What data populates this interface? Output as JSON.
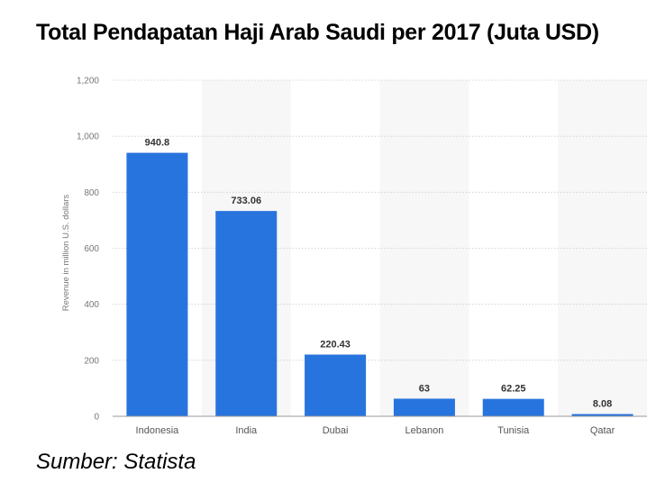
{
  "title": "Total Pendapatan Haji Arab Saudi per 2017 (Juta USD)",
  "source": "Sumber: Statista",
  "colors": {
    "bar": "#2874de",
    "band": "#f7f7f7",
    "grid": "#cccccc"
  },
  "chart_data": {
    "type": "bar",
    "categories": [
      "Indonesia",
      "India",
      "Dubai",
      "Lebanon",
      "Tunisia",
      "Qatar"
    ],
    "values": [
      940.8,
      733.06,
      220.43,
      63,
      62.25,
      8.08
    ],
    "data_labels": [
      "940.8",
      "733.06",
      "220.43",
      "63",
      "62.25",
      "8.08"
    ],
    "title": "Total Pendapatan Haji Arab Saudi per 2017 (Juta USD)",
    "xlabel": "",
    "ylabel": "Revenue in million U.S. dollars",
    "ylim": [
      0,
      1200
    ],
    "yticks": [
      0,
      200,
      400,
      600,
      800,
      1000,
      1200
    ],
    "ytick_labels": [
      "0",
      "200",
      "400",
      "600",
      "800",
      "1,000",
      "1,200"
    ],
    "grid": true,
    "legend": "none"
  }
}
